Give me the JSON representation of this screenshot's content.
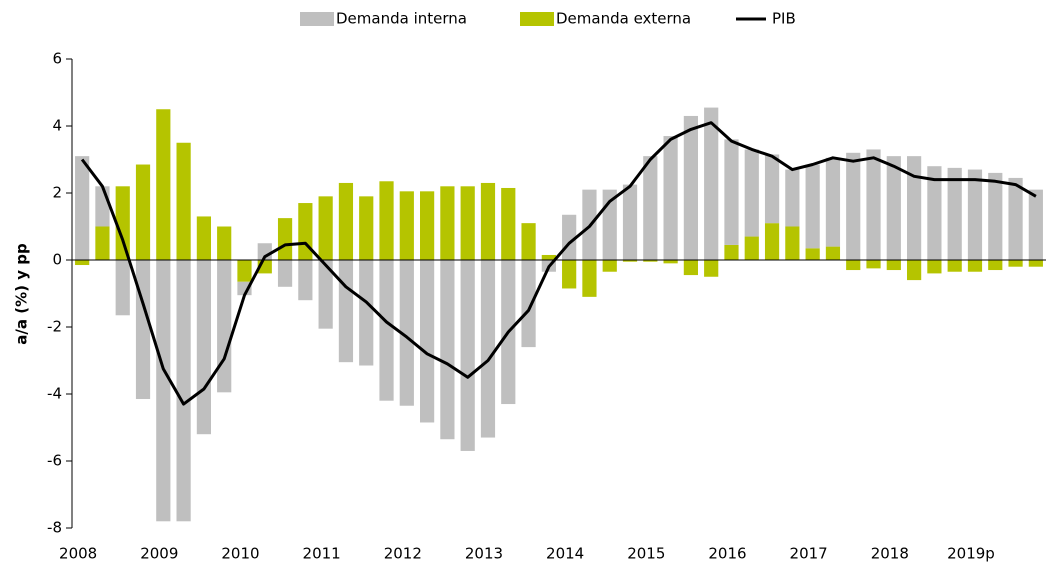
{
  "chart_data": {
    "type": "bar",
    "stacked": true,
    "y_label": "a/a (%) y pp",
    "categories": [
      "2008",
      null,
      null,
      null,
      "2009",
      null,
      null,
      null,
      "2010",
      null,
      null,
      null,
      "2011",
      null,
      null,
      null,
      "2012",
      null,
      null,
      null,
      "2013",
      null,
      null,
      null,
      "2014",
      null,
      null,
      null,
      "2015",
      null,
      null,
      null,
      "2016",
      null,
      null,
      null,
      "2017",
      null,
      null,
      null,
      "2018",
      null,
      null,
      null,
      "2019p",
      null,
      null,
      null
    ],
    "series": [
      {
        "name": "Demanda interna",
        "type": "bar",
        "color": "#bfbfbf",
        "values": [
          3.1,
          1.2,
          -1.65,
          -4.15,
          -7.8,
          -7.8,
          -5.2,
          -3.95,
          -0.4,
          0.5,
          -0.8,
          -1.2,
          -2.05,
          -3.05,
          -3.15,
          -4.2,
          -4.35,
          -4.85,
          -5.35,
          -5.7,
          -5.3,
          -4.3,
          -2.6,
          -0.35,
          1.35,
          2.1,
          2.1,
          2.25,
          3.1,
          3.7,
          4.3,
          4.55,
          3.15,
          2.6,
          2.05,
          1.7,
          2.5,
          2.65,
          3.2,
          3.3,
          3.1,
          3.1,
          2.8,
          2.75,
          2.7,
          2.6,
          2.45,
          2.1
        ]
      },
      {
        "name": "Demanda externa",
        "type": "bar",
        "color": "#b5c400",
        "values": [
          -0.15,
          1.0,
          2.2,
          2.85,
          4.5,
          3.5,
          1.3,
          1.0,
          -0.65,
          -0.4,
          1.25,
          1.7,
          1.9,
          2.3,
          1.9,
          2.35,
          2.05,
          2.05,
          2.2,
          2.2,
          2.3,
          2.15,
          1.1,
          0.15,
          -0.85,
          -1.1,
          -0.35,
          -0.05,
          -0.05,
          -0.1,
          -0.45,
          -0.5,
          0.45,
          0.7,
          1.1,
          1.0,
          0.35,
          0.4,
          -0.3,
          -0.25,
          -0.3,
          -0.6,
          -0.4,
          -0.35,
          -0.35,
          -0.3,
          -0.2,
          -0.2
        ]
      },
      {
        "name": "PIB",
        "type": "line",
        "color": "#000000",
        "values": [
          3.0,
          2.2,
          0.6,
          -1.3,
          -3.25,
          -4.3,
          -3.85,
          -2.95,
          -1.05,
          0.1,
          0.45,
          0.5,
          -0.15,
          -0.8,
          -1.25,
          -1.85,
          -2.3,
          -2.8,
          -3.1,
          -3.5,
          -3.0,
          -2.15,
          -1.5,
          -0.2,
          0.5,
          1.0,
          1.75,
          2.2,
          3.0,
          3.6,
          3.9,
          4.1,
          3.55,
          3.3,
          3.1,
          2.7,
          2.85,
          3.05,
          2.95,
          3.05,
          2.8,
          2.5,
          2.4,
          2.4,
          2.4,
          2.35,
          2.25,
          1.9
        ]
      }
    ],
    "stack_order": [
      "Demanda externa",
      "Demanda interna"
    ],
    "ylim": [
      -8,
      6
    ],
    "yticks": [
      -8,
      -6,
      -4,
      -2,
      0,
      2,
      4,
      6
    ],
    "legend": "top"
  }
}
